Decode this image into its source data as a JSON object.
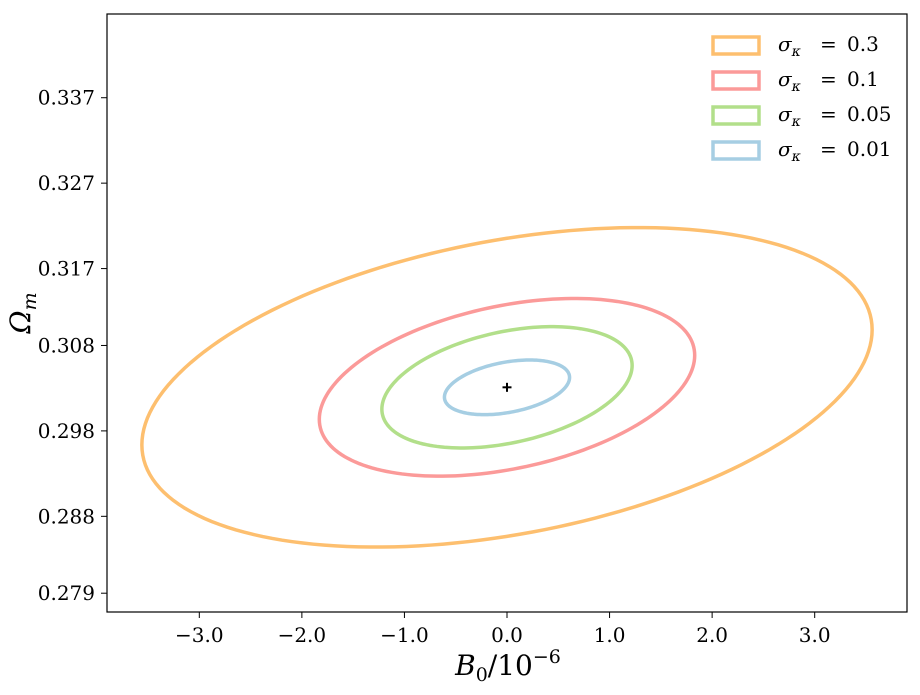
{
  "chart_data": {
    "type": "line",
    "title": "",
    "xlabel": "B_0/10^{-6}",
    "ylabel": "Ω_m",
    "xlim": [
      -3.9,
      3.9
    ],
    "ylim": [
      0.2768,
      0.3468
    ],
    "x_ticks": [
      -3.0,
      -2.0,
      -1.0,
      0.0,
      1.0,
      2.0,
      3.0
    ],
    "x_tick_labels": [
      "−3.0",
      "−2.0",
      "−1.0",
      "0.0",
      "1.0",
      "2.0",
      "3.0"
    ],
    "y_ticks": [
      0.279,
      0.288,
      0.298,
      0.308,
      0.317,
      0.327,
      0.337
    ],
    "y_tick_labels": [
      "0.279",
      "0.288",
      "0.298",
      "0.308",
      "0.317",
      "0.327",
      "0.337"
    ],
    "grid": false,
    "legend_position": "top-right",
    "fiducial": {
      "x": 0.0,
      "y": 0.3031,
      "marker": "+"
    },
    "series": [
      {
        "name": "σκ = 0.3",
        "legend_sym": "σ",
        "legend_sub": "κ",
        "legend_eq": "=",
        "legend_val": "0.3",
        "color": "#fdbf6f",
        "ellipse": {
          "cx": 0.0,
          "cy": 0.3031,
          "rx": 3.56,
          "ry": 0.0187,
          "corr": 0.36
        }
      },
      {
        "name": "σκ = 0.1",
        "legend_sym": "σ",
        "legend_sub": "κ",
        "legend_eq": "=",
        "legend_val": "0.1",
        "color": "#fb9a99",
        "ellipse": {
          "cx": 0.0,
          "cy": 0.3031,
          "rx": 1.83,
          "ry": 0.0104,
          "corr": 0.36
        }
      },
      {
        "name": "σκ = 0.05",
        "legend_sym": "σ",
        "legend_sub": "κ",
        "legend_eq": "=",
        "legend_val": "0.05",
        "color": "#b2df8a",
        "ellipse": {
          "cx": 0.0,
          "cy": 0.3031,
          "rx": 1.22,
          "ry": 0.0071,
          "corr": 0.36
        }
      },
      {
        "name": "σκ = 0.01",
        "legend_sym": "σ",
        "legend_sub": "κ",
        "legend_eq": "=",
        "legend_val": "0.01",
        "color": "#a6cee3",
        "ellipse": {
          "cx": 0.0,
          "cy": 0.3031,
          "rx": 0.61,
          "ry": 0.0032,
          "corr": 0.36
        }
      }
    ]
  },
  "axis_text": {
    "x_main": "B",
    "x_sub": "0",
    "x_rest": "/10",
    "x_sup": "−6",
    "y_main": "Ω",
    "y_sub": "m"
  }
}
